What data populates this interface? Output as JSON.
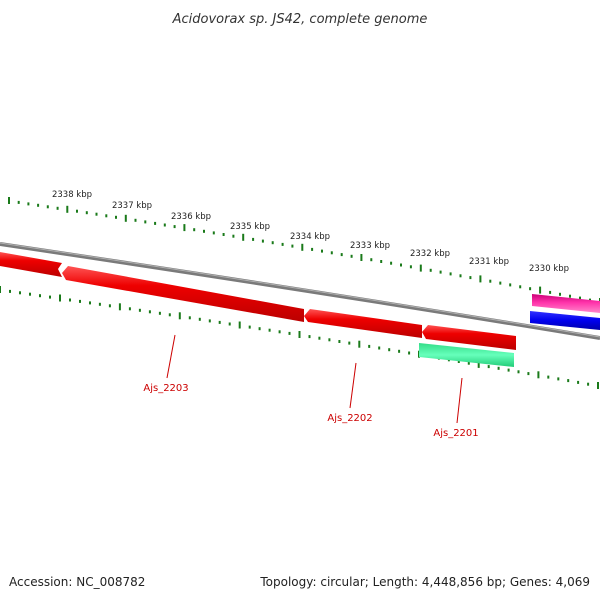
{
  "title": "Acidovorax sp. JS42, complete genome",
  "footer": {
    "accession": "Accession: NC_008782",
    "summary": "Topology: circular; Length: 4,448,856 bp; Genes: 4,069"
  },
  "scale_labels": [
    "2338 kbp",
    "2337 kbp",
    "2336 kbp",
    "2335 kbp",
    "2334 kbp",
    "2333 kbp",
    "2332 kbp",
    "2331 kbp",
    "2330 kbp"
  ],
  "gene_labels": [
    "Ajs_2203",
    "Ajs_2202",
    "Ajs_2201"
  ],
  "colors": {
    "background": "#ffffff",
    "backbone": "#808080",
    "tick": "#1a7a1a",
    "gene_red": "#ee0000",
    "gene_label": "#cc0000",
    "feature_green": "#33ee99",
    "feature_magenta": "#ee1199",
    "feature_blue": "#0000ee"
  }
}
